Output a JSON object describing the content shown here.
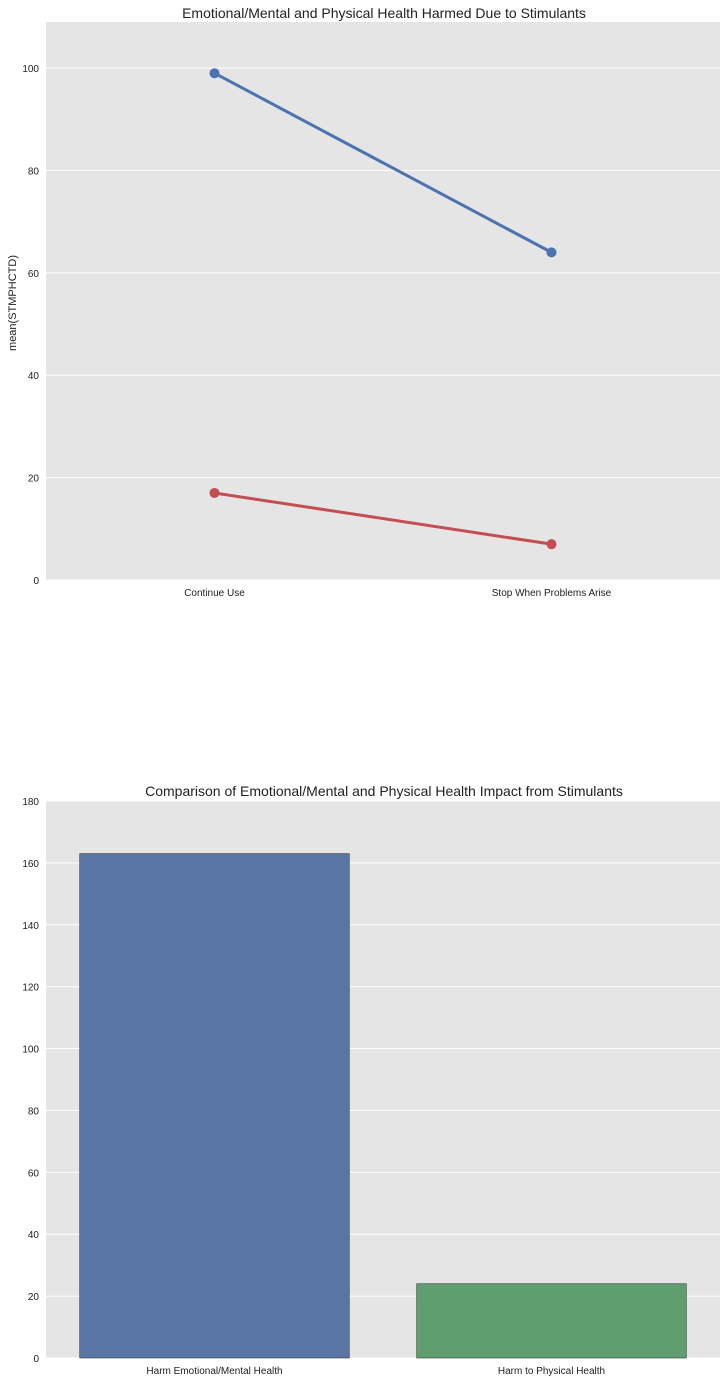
{
  "chart_data": [
    {
      "type": "line",
      "title": "Emotional/Mental and Physical Health Harmed Due to Stimulants",
      "xlabel": "",
      "ylabel": "mean(STMPHCTD)",
      "categories": [
        "Continue Use",
        "Stop When Problems Arise"
      ],
      "series": [
        {
          "values": [
            99,
            64
          ],
          "color": "#4c72b0"
        },
        {
          "values": [
            17,
            7
          ],
          "color": "#c44e52"
        }
      ],
      "ylim": [
        0,
        109
      ],
      "yticks": [
        0,
        20,
        40,
        60,
        80,
        100
      ],
      "grid": true,
      "background": "#e5e5e5"
    },
    {
      "type": "bar",
      "title": "Comparison of Emotional/Mental and Physical Health Impact from Stimulants",
      "xlabel": "",
      "ylabel": "",
      "categories": [
        "Harm Emotional/Mental Health",
        "Harm to Physical Health"
      ],
      "values": [
        163,
        24
      ],
      "colors": [
        "#5975a4",
        "#5f9e6e"
      ],
      "ylim": [
        0,
        180
      ],
      "yticks": [
        0,
        20,
        40,
        60,
        80,
        100,
        120,
        140,
        160,
        180
      ],
      "grid": true,
      "background": "#e5e5e5"
    }
  ]
}
